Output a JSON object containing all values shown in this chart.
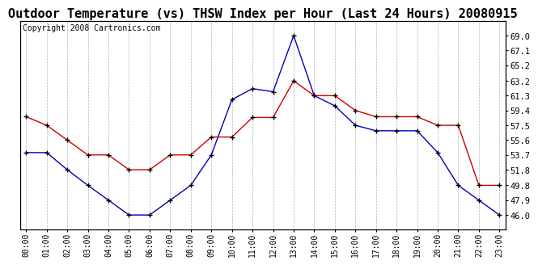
{
  "title": "Outdoor Temperature (vs) THSW Index per Hour (Last 24 Hours) 20080915",
  "copyright": "Copyright 2008 Cartronics.com",
  "hours": [
    0,
    1,
    2,
    3,
    4,
    5,
    6,
    7,
    8,
    9,
    10,
    11,
    12,
    13,
    14,
    15,
    16,
    17,
    18,
    19,
    20,
    21,
    22,
    23
  ],
  "blue_data": [
    54.0,
    54.0,
    51.8,
    49.8,
    47.9,
    46.0,
    46.0,
    47.9,
    49.8,
    53.7,
    60.8,
    62.2,
    61.8,
    69.0,
    61.3,
    60.0,
    57.5,
    56.8,
    56.8,
    56.8,
    54.0,
    49.8,
    47.9,
    46.0
  ],
  "red_data": [
    58.6,
    57.5,
    55.6,
    53.7,
    53.7,
    51.8,
    51.8,
    53.7,
    53.7,
    56.0,
    56.0,
    58.5,
    58.5,
    63.2,
    61.3,
    61.3,
    59.4,
    58.6,
    58.6,
    58.6,
    57.5,
    57.5,
    49.8,
    49.8
  ],
  "ymin": 44.1,
  "ymax": 70.9,
  "yticks": [
    46.0,
    47.9,
    49.8,
    51.8,
    53.7,
    55.6,
    57.5,
    59.4,
    61.3,
    63.2,
    65.2,
    67.1,
    69.0
  ],
  "blue_color": "#0000bb",
  "red_color": "#cc0000",
  "bg_color": "#ffffff",
  "plot_bg": "#ffffff",
  "grid_color": "#aaaaaa",
  "title_fontsize": 11,
  "copyright_fontsize": 7,
  "tick_fontsize": 7,
  "ytick_fontsize": 7.5
}
